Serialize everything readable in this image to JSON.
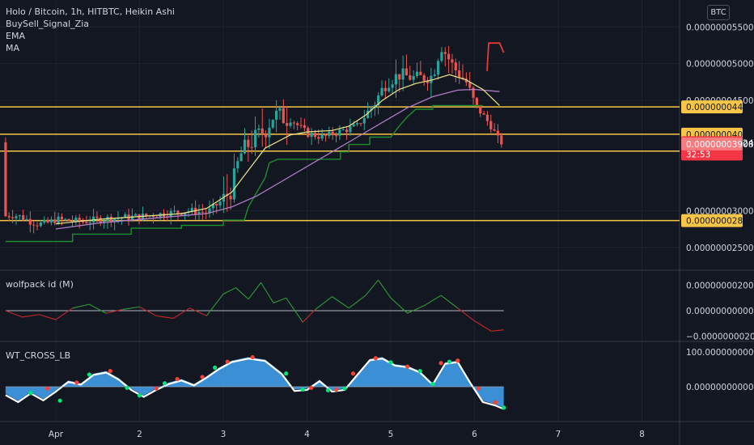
{
  "header": {
    "title": "Holo / Bitcoin, 1h, HITBTC, Heikin Ashi",
    "indicators": [
      "BuySell_Signal_Zia",
      "EMA",
      "MA"
    ],
    "currency_button": "BTC"
  },
  "colors": {
    "bg": "#131722",
    "up": "#26a69a",
    "down": "#ef5350",
    "level": "#f7c548",
    "ema": "#f0e68c",
    "ma": "#b07cc6",
    "trail": "#1e8c2f",
    "wave": "#42a5f5"
  },
  "chart_data": [
    {
      "type": "candlestick",
      "name": "price",
      "title": "Holo / Bitcoin, 1h, HITBTC, Heikin Ashi",
      "x_ticks": [
        "Apr",
        "2",
        "3",
        "4",
        "5",
        "6",
        "7",
        "8"
      ],
      "x_tick_pos": [
        0,
        1,
        2,
        3,
        4,
        5,
        6,
        7
      ],
      "ylim": [
        2.2e-08,
        5.8e-08
      ],
      "y_ticks": [
        "0.000000055000",
        "0.000000050000",
        "0.000000045000",
        "0.000000030000",
        "0.000000025000"
      ],
      "y_tick_values": [
        5.5e-08,
        5e-08,
        4.5e-08,
        3e-08,
        2.5e-08
      ],
      "levels": [
        {
          "label": "0.000000044119",
          "value": 4.4119e-08
        },
        {
          "label": "0.000000040400",
          "value": 4.04e-08
        },
        {
          "label": "0.000000038095",
          "value": 3.8095e-08
        },
        {
          "label": "0.000000028652",
          "value": 2.8652e-08
        }
      ],
      "last_price": {
        "label": "0.000000039243",
        "countdown": "32:53",
        "value": 3.9243e-08
      },
      "secondary_price": {
        "label": "0.000000039084",
        "value": 3.9084e-08
      },
      "path": [
        [
          0,
          28.8
        ],
        [
          0.3,
          28.5
        ],
        [
          0.6,
          28.9
        ],
        [
          1.0,
          29.2
        ],
        [
          1.3,
          29.6
        ],
        [
          1.6,
          30.0
        ],
        [
          1.8,
          29.7
        ],
        [
          2.0,
          31.5
        ],
        [
          2.1,
          33.0
        ],
        [
          2.2,
          37.5
        ],
        [
          2.3,
          39.0
        ],
        [
          2.5,
          41.0
        ],
        [
          2.6,
          43.0
        ],
        [
          2.8,
          42.5
        ],
        [
          3.0,
          40.5
        ],
        [
          3.2,
          40.0
        ],
        [
          3.4,
          40.8
        ],
        [
          3.6,
          41.5
        ],
        [
          3.8,
          44.5
        ],
        [
          3.95,
          47.5
        ],
        [
          4.1,
          48.5
        ],
        [
          4.3,
          48.0
        ],
        [
          4.5,
          48.3
        ],
        [
          4.6,
          52.5
        ],
        [
          4.75,
          49.5
        ],
        [
          4.9,
          47.5
        ],
        [
          5.0,
          44.5
        ],
        [
          5.1,
          43.0
        ],
        [
          5.2,
          41.5
        ],
        [
          5.3,
          39.3
        ]
      ],
      "ema": [
        [
          0,
          28.2
        ],
        [
          0.5,
          28.8
        ],
        [
          1.0,
          29.2
        ],
        [
          1.5,
          29.6
        ],
        [
          1.8,
          30.3
        ],
        [
          2.1,
          32.5
        ],
        [
          2.3,
          35.5
        ],
        [
          2.5,
          38.5
        ],
        [
          2.8,
          40.3
        ],
        [
          3.0,
          40.7
        ],
        [
          3.3,
          40.9
        ],
        [
          3.5,
          41.5
        ],
        [
          3.7,
          43.0
        ],
        [
          3.9,
          45.0
        ],
        [
          4.1,
          46.5
        ],
        [
          4.3,
          47.3
        ],
        [
          4.5,
          47.8
        ],
        [
          4.7,
          48.5
        ],
        [
          4.9,
          47.8
        ],
        [
          5.1,
          46.5
        ],
        [
          5.3,
          44.3
        ]
      ],
      "ma": [
        [
          0,
          27.5
        ],
        [
          0.5,
          28.3
        ],
        [
          1.0,
          28.8
        ],
        [
          1.5,
          29.3
        ],
        [
          1.8,
          29.6
        ],
        [
          2.1,
          30.5
        ],
        [
          2.4,
          32.0
        ],
        [
          2.7,
          34.0
        ],
        [
          3.0,
          36.0
        ],
        [
          3.3,
          38.0
        ],
        [
          3.6,
          40.0
        ],
        [
          3.9,
          42.0
        ],
        [
          4.2,
          44.0
        ],
        [
          4.5,
          45.5
        ],
        [
          4.8,
          46.4
        ],
        [
          5.0,
          46.5
        ],
        [
          5.3,
          46.2
        ]
      ],
      "trail": [
        [
          -0.6,
          25.8
        ],
        [
          0,
          25.8
        ],
        [
          0.2,
          25.8
        ],
        [
          0.2,
          26.8
        ],
        [
          0.9,
          26.8
        ],
        [
          0.9,
          27.6
        ],
        [
          1.5,
          27.6
        ],
        [
          1.5,
          28.0
        ],
        [
          2.0,
          28.0
        ],
        [
          2.0,
          28.7
        ],
        [
          2.25,
          28.7
        ],
        [
          2.3,
          30.5
        ],
        [
          2.4,
          32.5
        ],
        [
          2.5,
          34.5
        ],
        [
          2.55,
          36.5
        ],
        [
          2.65,
          37.0
        ],
        [
          3.4,
          37.0
        ],
        [
          3.4,
          38.0
        ],
        [
          3.5,
          38.0
        ],
        [
          3.5,
          39.0
        ],
        [
          3.75,
          39.0
        ],
        [
          3.75,
          40.0
        ],
        [
          4.0,
          40.0
        ],
        [
          4.1,
          41.5
        ],
        [
          4.2,
          42.8
        ],
        [
          4.3,
          43.8
        ],
        [
          4.5,
          43.8
        ],
        [
          4.5,
          44.3
        ],
        [
          4.6,
          44.3
        ],
        [
          5.0,
          44.3
        ],
        [
          5.1,
          44.3
        ]
      ],
      "signal": [
        [
          5.15,
          49.0
        ],
        [
          5.17,
          52.8
        ],
        [
          5.3,
          52.8
        ],
        [
          5.35,
          51.5
        ]
      ]
    },
    {
      "type": "line",
      "name": "wolfpack id (M)",
      "title": "wolfpack id (M)",
      "ylim": [
        -2.5e-09,
        2.5e-09
      ],
      "y_ticks": [
        "0.000000002000",
        "0.000000000000",
        "−0.000000002000"
      ],
      "y_tick_values": [
        2e-09,
        0,
        -2e-09
      ],
      "x": [
        -0.6,
        -0.4,
        -0.2,
        0,
        0.2,
        0.4,
        0.6,
        0.8,
        1.0,
        1.2,
        1.4,
        1.6,
        1.8,
        2.0,
        2.15,
        2.3,
        2.45,
        2.6,
        2.75,
        2.95,
        3.1,
        3.3,
        3.5,
        3.7,
        3.85,
        4.0,
        4.2,
        4.4,
        4.6,
        4.8,
        5.0,
        5.2,
        5.35
      ],
      "values": [
        0.0,
        -0.5,
        -0.3,
        -0.7,
        0.2,
        0.5,
        -0.2,
        0.1,
        0.3,
        -0.4,
        -0.6,
        0.2,
        -0.4,
        1.3,
        1.8,
        0.9,
        2.2,
        0.6,
        1.0,
        -0.9,
        0.1,
        1.1,
        0.2,
        1.2,
        2.4,
        1.0,
        -0.2,
        0.4,
        1.2,
        0.2,
        -0.8,
        -1.6,
        -1.5
      ]
    },
    {
      "type": "area",
      "name": "WT_CROSS_LB",
      "title": "WT_CROSS_LB",
      "ylim": [
        -60,
        110
      ],
      "y_ticks": [
        "100.000000000000",
        "0.000000000000"
      ],
      "y_tick_values": [
        100,
        0
      ],
      "x": [
        -0.6,
        -0.45,
        -0.3,
        -0.15,
        0,
        0.15,
        0.3,
        0.45,
        0.6,
        0.75,
        0.9,
        1.05,
        1.2,
        1.35,
        1.5,
        1.65,
        1.8,
        1.95,
        2.1,
        2.3,
        2.5,
        2.7,
        2.85,
        3.0,
        3.15,
        3.3,
        3.45,
        3.6,
        3.75,
        3.9,
        4.05,
        4.2,
        4.35,
        4.5,
        4.65,
        4.8,
        4.95,
        5.1,
        5.25,
        5.35
      ],
      "values": [
        -20,
        -40,
        -15,
        -35,
        -10,
        18,
        10,
        38,
        45,
        25,
        -5,
        -25,
        -5,
        12,
        22,
        8,
        30,
        55,
        75,
        85,
        78,
        40,
        -8,
        -5,
        20,
        -10,
        -5,
        38,
        80,
        85,
        65,
        60,
        45,
        10,
        70,
        75,
        15,
        -40,
        -50,
        -60
      ],
      "dots_red": [
        [
          -0.1,
          -5
        ],
        [
          0.25,
          12
        ],
        [
          0.65,
          45
        ],
        [
          1.2,
          -5
        ],
        [
          1.45,
          22
        ],
        [
          1.75,
          28
        ],
        [
          2.05,
          72
        ],
        [
          2.35,
          85
        ],
        [
          3.05,
          -3
        ],
        [
          3.35,
          -8
        ],
        [
          3.55,
          38
        ],
        [
          3.82,
          82
        ],
        [
          4.2,
          58
        ],
        [
          4.6,
          68
        ],
        [
          4.8,
          75
        ],
        [
          5.05,
          -5
        ],
        [
          5.25,
          -45
        ]
      ],
      "dots_green": [
        [
          -0.3,
          -18
        ],
        [
          0.05,
          -40
        ],
        [
          0.4,
          35
        ],
        [
          0.85,
          -3
        ],
        [
          1.0,
          -25
        ],
        [
          1.3,
          10
        ],
        [
          1.9,
          55
        ],
        [
          2.75,
          38
        ],
        [
          2.95,
          -8
        ],
        [
          3.25,
          -10
        ],
        [
          3.45,
          -5
        ],
        [
          4.0,
          70
        ],
        [
          4.35,
          45
        ],
        [
          4.5,
          8
        ],
        [
          4.7,
          72
        ],
        [
          5.35,
          -60
        ]
      ]
    }
  ]
}
